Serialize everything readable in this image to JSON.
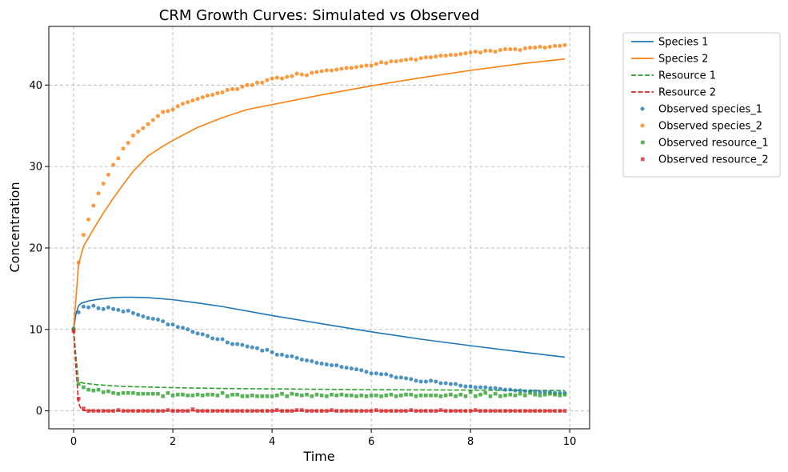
{
  "chart_data": {
    "type": "line",
    "title": "CRM Growth Curves: Simulated vs Observed",
    "xlabel": "Time",
    "ylabel": "Concentration",
    "xlim": [
      -0.5,
      10.4
    ],
    "ylim": [
      -2.2,
      47.2
    ],
    "xticks": [
      0,
      2,
      4,
      6,
      8,
      10
    ],
    "yticks": [
      0,
      10,
      20,
      30,
      40
    ],
    "grid": true,
    "legend_position": "outside-top-right",
    "series": [
      {
        "name": "Species 1",
        "kind": "line",
        "style": "solid",
        "color": "#1f77b4",
        "x": [
          0,
          0.05,
          0.1,
          0.15,
          0.3,
          0.5,
          0.8,
          1.0,
          1.2,
          1.5,
          2.0,
          2.5,
          3.0,
          4.0,
          5.0,
          6.0,
          7.0,
          8.0,
          9.0,
          9.9
        ],
        "y": [
          10,
          12.0,
          12.9,
          13.2,
          13.5,
          13.7,
          13.9,
          13.95,
          13.95,
          13.9,
          13.65,
          13.25,
          12.8,
          11.7,
          10.7,
          9.7,
          8.8,
          8.0,
          7.25,
          6.6
        ]
      },
      {
        "name": "Species 2",
        "kind": "line",
        "style": "solid",
        "color": "#ff7f0e",
        "x": [
          0,
          0.05,
          0.1,
          0.2,
          0.4,
          0.6,
          0.8,
          1.0,
          1.2,
          1.5,
          1.8,
          2.0,
          2.5,
          3.0,
          3.5,
          4.0,
          5.0,
          6.0,
          7.0,
          8.0,
          9.0,
          9.9
        ],
        "y": [
          10,
          14.0,
          18.0,
          20.2,
          22.3,
          24.3,
          26.1,
          27.8,
          29.4,
          31.3,
          32.5,
          33.2,
          34.8,
          36.0,
          37.0,
          37.6,
          38.8,
          39.9,
          40.9,
          41.8,
          42.6,
          43.2
        ]
      },
      {
        "name": "Resource 1",
        "kind": "line",
        "style": "dashed",
        "color": "#2ca02c",
        "x": [
          0,
          0.05,
          0.1,
          0.2,
          0.5,
          1.0,
          2.0,
          3.0,
          4.0,
          5.0,
          6.0,
          7.0,
          8.0,
          9.0,
          9.9
        ],
        "y": [
          10,
          6.5,
          3.6,
          3.4,
          3.2,
          3.0,
          2.85,
          2.75,
          2.7,
          2.65,
          2.6,
          2.58,
          2.55,
          2.52,
          2.5
        ]
      },
      {
        "name": "Resource 2",
        "kind": "line",
        "style": "dashed",
        "color": "#d62728",
        "x": [
          0,
          0.05,
          0.1,
          0.15,
          0.2,
          0.5,
          1.0,
          2.0,
          4.0,
          6.0,
          8.0,
          9.9
        ],
        "y": [
          10,
          5.0,
          1.0,
          0.2,
          0.05,
          0.01,
          0.0,
          0.0,
          0.0,
          0.0,
          0.0,
          0.0
        ]
      },
      {
        "name": "Observed species_1",
        "kind": "scatter",
        "marker": "circle",
        "color": "#1f77b4",
        "x": [
          0,
          0.1,
          0.2,
          0.3,
          0.4,
          0.5,
          0.6,
          0.7,
          0.8,
          0.9,
          1.0,
          1.1,
          1.2,
          1.3,
          1.4,
          1.5,
          1.6,
          1.7,
          1.8,
          1.9,
          2.0,
          2.1,
          2.2,
          2.3,
          2.4,
          2.5,
          2.6,
          2.7,
          2.8,
          2.9,
          3.0,
          3.1,
          3.2,
          3.3,
          3.4,
          3.5,
          3.6,
          3.7,
          3.8,
          3.9,
          4.0,
          4.1,
          4.2,
          4.3,
          4.4,
          4.5,
          4.6,
          4.7,
          4.8,
          4.9,
          5.0,
          5.1,
          5.2,
          5.3,
          5.4,
          5.5,
          5.6,
          5.7,
          5.8,
          5.9,
          6.0,
          6.1,
          6.2,
          6.3,
          6.4,
          6.5,
          6.6,
          6.7,
          6.8,
          6.9,
          7.0,
          7.1,
          7.2,
          7.3,
          7.4,
          7.5,
          7.6,
          7.7,
          7.8,
          7.9,
          8.0,
          8.1,
          8.2,
          8.3,
          8.4,
          8.5,
          8.6,
          8.7,
          8.8,
          8.9,
          9.0,
          9.1,
          9.2,
          9.3,
          9.4,
          9.5,
          9.6,
          9.7,
          9.8,
          9.9
        ],
        "y": [
          10.1,
          12.1,
          12.8,
          12.7,
          12.9,
          12.6,
          12.5,
          12.7,
          12.5,
          12.4,
          12.2,
          12.3,
          12.0,
          11.8,
          11.6,
          11.4,
          11.3,
          11.2,
          11.0,
          10.6,
          10.6,
          10.3,
          10.2,
          10.0,
          9.7,
          9.5,
          9.4,
          9.2,
          8.9,
          8.8,
          8.8,
          8.4,
          8.2,
          8.2,
          8.1,
          7.9,
          7.8,
          7.7,
          7.4,
          7.5,
          7.2,
          6.9,
          6.9,
          6.7,
          6.7,
          6.5,
          6.3,
          6.2,
          6.1,
          5.9,
          5.8,
          5.7,
          5.6,
          5.6,
          5.4,
          5.3,
          5.2,
          5.1,
          5.0,
          4.8,
          4.6,
          4.6,
          4.5,
          4.5,
          4.3,
          4.1,
          4.1,
          4.0,
          3.9,
          3.7,
          3.6,
          3.6,
          3.7,
          3.6,
          3.4,
          3.4,
          3.3,
          3.3,
          3.1,
          3.0,
          3.0,
          2.9,
          2.9,
          2.9,
          2.8,
          2.8,
          2.7,
          2.6,
          2.6,
          2.5,
          2.5,
          2.4,
          2.4,
          2.4,
          2.3,
          2.3,
          2.3,
          2.2,
          2.2,
          2.2
        ]
      },
      {
        "name": "Observed species_2",
        "kind": "scatter",
        "marker": "circle",
        "color": "#ff7f0e",
        "x": [
          0,
          0.1,
          0.2,
          0.3,
          0.4,
          0.5,
          0.6,
          0.7,
          0.8,
          0.9,
          1.0,
          1.1,
          1.2,
          1.3,
          1.4,
          1.5,
          1.6,
          1.7,
          1.8,
          1.9,
          2.0,
          2.1,
          2.2,
          2.3,
          2.4,
          2.5,
          2.6,
          2.7,
          2.8,
          2.9,
          3.0,
          3.1,
          3.2,
          3.3,
          3.4,
          3.5,
          3.6,
          3.7,
          3.8,
          3.9,
          4.0,
          4.1,
          4.2,
          4.3,
          4.4,
          4.5,
          4.6,
          4.7,
          4.8,
          4.9,
          5.0,
          5.1,
          5.2,
          5.3,
          5.4,
          5.5,
          5.6,
          5.7,
          5.8,
          5.9,
          6.0,
          6.1,
          6.2,
          6.3,
          6.4,
          6.5,
          6.6,
          6.7,
          6.8,
          6.9,
          7.0,
          7.1,
          7.2,
          7.3,
          7.4,
          7.5,
          7.6,
          7.7,
          7.8,
          7.9,
          8.0,
          8.1,
          8.2,
          8.3,
          8.4,
          8.5,
          8.6,
          8.7,
          8.8,
          8.9,
          9.0,
          9.1,
          9.2,
          9.3,
          9.4,
          9.5,
          9.6,
          9.7,
          9.8,
          9.9
        ],
        "y": [
          10.0,
          18.2,
          21.6,
          23.5,
          25.2,
          26.7,
          27.9,
          29.0,
          30.2,
          31.0,
          32.2,
          32.9,
          33.8,
          34.3,
          34.7,
          35.2,
          35.7,
          36.2,
          36.7,
          36.8,
          37.0,
          37.4,
          37.7,
          37.9,
          38.1,
          38.3,
          38.5,
          38.7,
          38.8,
          39.0,
          39.1,
          39.4,
          39.5,
          39.5,
          39.8,
          40.0,
          40.0,
          40.3,
          40.3,
          40.6,
          40.8,
          40.9,
          40.8,
          41.0,
          41.1,
          41.4,
          41.3,
          41.2,
          41.5,
          41.6,
          41.7,
          41.8,
          41.8,
          41.9,
          42.0,
          42.1,
          42.1,
          42.2,
          42.3,
          42.4,
          42.4,
          42.6,
          42.8,
          42.7,
          42.9,
          42.9,
          43.0,
          43.1,
          43.2,
          43.1,
          43.3,
          43.4,
          43.4,
          43.5,
          43.6,
          43.6,
          43.7,
          43.7,
          43.8,
          43.9,
          44.0,
          44.1,
          44.0,
          44.2,
          44.2,
          44.1,
          44.3,
          44.4,
          44.4,
          44.4,
          44.3,
          44.5,
          44.6,
          44.6,
          44.7,
          44.6,
          44.7,
          44.8,
          44.8,
          44.9
        ]
      },
      {
        "name": "Observed resource_1",
        "kind": "scatter",
        "marker": "square",
        "color": "#2ca02c",
        "x": [
          0,
          0.1,
          0.2,
          0.3,
          0.4,
          0.5,
          0.6,
          0.7,
          0.8,
          0.9,
          1.0,
          1.1,
          1.2,
          1.3,
          1.4,
          1.5,
          1.6,
          1.7,
          1.8,
          1.9,
          2.0,
          2.1,
          2.2,
          2.3,
          2.4,
          2.5,
          2.6,
          2.7,
          2.8,
          2.9,
          3.0,
          3.1,
          3.2,
          3.3,
          3.4,
          3.5,
          3.6,
          3.7,
          3.8,
          3.9,
          4.0,
          4.1,
          4.2,
          4.3,
          4.4,
          4.5,
          4.6,
          4.7,
          4.8,
          4.9,
          5.0,
          5.1,
          5.2,
          5.3,
          5.4,
          5.5,
          5.6,
          5.7,
          5.8,
          5.9,
          6.0,
          6.1,
          6.2,
          6.3,
          6.4,
          6.5,
          6.6,
          6.7,
          6.8,
          6.9,
          7.0,
          7.1,
          7.2,
          7.3,
          7.4,
          7.5,
          7.6,
          7.7,
          7.8,
          7.9,
          8.0,
          8.1,
          8.2,
          8.3,
          8.4,
          8.5,
          8.6,
          8.7,
          8.8,
          8.9,
          9.0,
          9.1,
          9.2,
          9.3,
          9.4,
          9.5,
          9.6,
          9.7,
          9.8,
          9.9
        ],
        "y": [
          10.0,
          3.3,
          2.9,
          2.6,
          2.5,
          2.6,
          2.3,
          2.4,
          2.2,
          2.1,
          2.2,
          2.2,
          2.2,
          2.1,
          2.1,
          2.1,
          2.1,
          2.1,
          1.8,
          2.2,
          1.9,
          2.0,
          2.0,
          1.9,
          1.9,
          2.0,
          1.9,
          2.0,
          2.0,
          1.9,
          2.2,
          1.8,
          2.0,
          2.0,
          1.8,
          1.8,
          1.9,
          1.8,
          1.8,
          1.8,
          1.8,
          1.9,
          2.1,
          1.8,
          2.1,
          2.0,
          1.9,
          2.0,
          1.8,
          2.0,
          1.9,
          1.8,
          2.0,
          1.9,
          2.0,
          1.9,
          1.9,
          1.8,
          1.9,
          1.8,
          1.9,
          1.9,
          1.8,
          1.9,
          2.0,
          1.8,
          1.9,
          2.0,
          2.0,
          1.8,
          1.9,
          1.9,
          1.9,
          1.9,
          1.8,
          1.9,
          2.0,
          1.8,
          2.0,
          1.8,
          2.3,
          1.8,
          2.0,
          2.2,
          1.8,
          2.1,
          1.8,
          1.9,
          2.0,
          1.9,
          2.1,
          1.9,
          2.2,
          2.0,
          1.9,
          2.0,
          2.1,
          2.0,
          1.9,
          2.0
        ]
      },
      {
        "name": "Observed resource_2",
        "kind": "scatter",
        "marker": "square",
        "color": "#d62728",
        "x": [
          0,
          0.1,
          0.2,
          0.3,
          0.4,
          0.5,
          0.6,
          0.7,
          0.8,
          0.9,
          1.0,
          1.1,
          1.2,
          1.3,
          1.4,
          1.5,
          1.6,
          1.7,
          1.8,
          1.9,
          2.0,
          2.1,
          2.2,
          2.3,
          2.4,
          2.5,
          2.6,
          2.7,
          2.8,
          2.9,
          3.0,
          3.1,
          3.2,
          3.3,
          3.4,
          3.5,
          3.6,
          3.7,
          3.8,
          3.9,
          4.0,
          4.1,
          4.2,
          4.3,
          4.4,
          4.5,
          4.6,
          4.7,
          4.8,
          4.9,
          5.0,
          5.1,
          5.2,
          5.3,
          5.4,
          5.5,
          5.6,
          5.7,
          5.8,
          5.9,
          6.0,
          6.1,
          6.2,
          6.3,
          6.4,
          6.5,
          6.6,
          6.7,
          6.8,
          6.9,
          7.0,
          7.1,
          7.2,
          7.3,
          7.4,
          7.5,
          7.6,
          7.7,
          7.8,
          7.9,
          8.0,
          8.1,
          8.2,
          8.3,
          8.4,
          8.5,
          8.6,
          8.7,
          8.8,
          8.9,
          9.0,
          9.1,
          9.2,
          9.3,
          9.4,
          9.5,
          9.6,
          9.7,
          9.8,
          9.9
        ],
        "y": [
          9.8,
          1.5,
          0.3,
          0.0,
          0.0,
          0.0,
          0.0,
          0.0,
          0.0,
          0.1,
          0.0,
          0.0,
          0.0,
          0.0,
          0.0,
          0.0,
          0.0,
          0.0,
          0.0,
          0.1,
          0.0,
          0.0,
          0.0,
          0.0,
          0.2,
          0.0,
          0.0,
          0.0,
          0.0,
          0.0,
          0.0,
          0.0,
          0.0,
          0.0,
          0.0,
          0.0,
          0.0,
          0.0,
          0.0,
          0.0,
          0.0,
          0.1,
          0.0,
          0.0,
          0.0,
          0.1,
          0.1,
          0.0,
          0.0,
          0.0,
          0.0,
          0.0,
          0.1,
          0.0,
          0.0,
          0.0,
          0.0,
          0.0,
          0.0,
          0.0,
          0.0,
          0.1,
          0.0,
          0.0,
          0.0,
          0.0,
          0.0,
          0.0,
          0.1,
          0.0,
          0.0,
          0.0,
          0.0,
          0.0,
          0.1,
          0.0,
          0.0,
          0.0,
          0.0,
          0.0,
          0.0,
          0.1,
          0.0,
          0.0,
          0.0,
          0.0,
          0.0,
          0.0,
          0.0,
          0.0,
          0.0,
          0.0,
          0.0,
          0.0,
          0.0,
          0.0,
          0.0,
          0.0,
          0.0,
          0.0
        ]
      }
    ]
  }
}
